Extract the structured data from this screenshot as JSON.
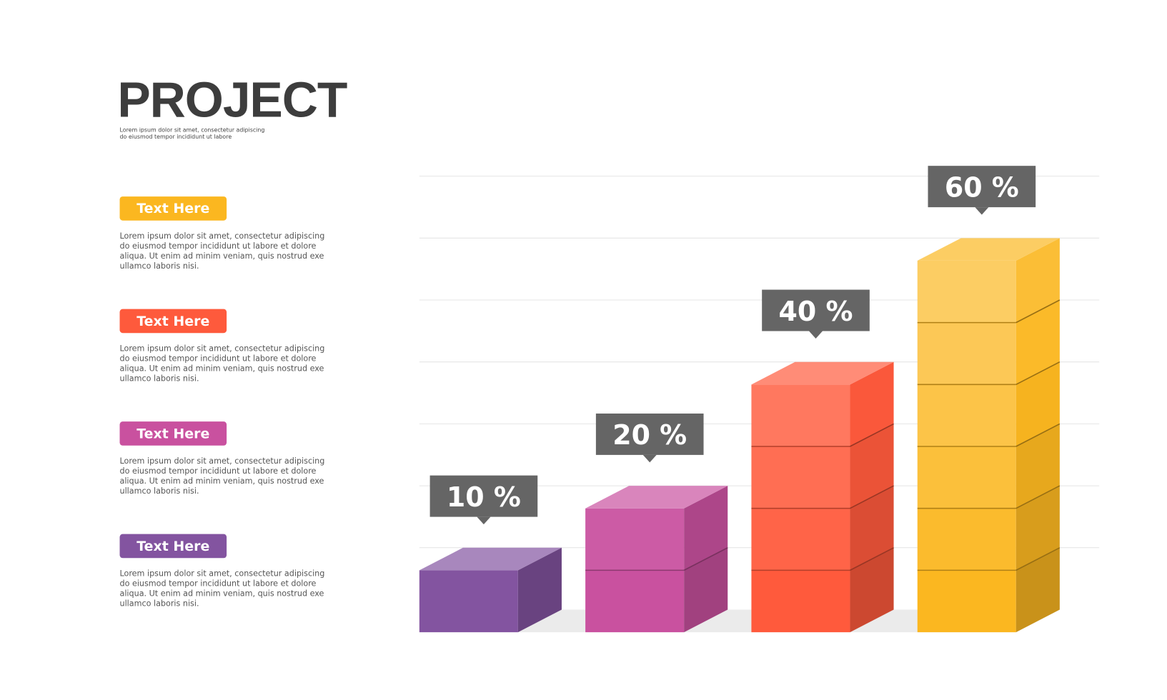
{
  "header": {
    "title": "PROJECT",
    "subtitle": [
      "Lorem ipsum dolor sit amet, consectetur adipiscing",
      "do eiusmod tempor incididunt ut labore"
    ]
  },
  "items": [
    {
      "label": "Text Here",
      "color": "#fbb720",
      "text": [
        "Lorem ipsum dolor sit amet, consectetur adipiscing",
        "do eiusmod tempor incididunt ut labore et dolore",
        "aliqua. Ut enim ad minim veniam, quis nostrud exe",
        "ullamco laboris nisi."
      ]
    },
    {
      "label": "Text Here",
      "color": "#fe5a3c",
      "text": [
        "Lorem ipsum dolor sit amet, consectetur adipiscing",
        "do eiusmod tempor incididunt ut labore et dolore",
        "aliqua. Ut enim ad minim veniam, quis nostrud exe",
        "ullamco laboris nisi."
      ]
    },
    {
      "label": "Text Here",
      "color": "#c9519f",
      "text": [
        "Lorem ipsum dolor sit amet, consectetur adipiscing",
        "do eiusmod tempor incididunt ut labore et dolore",
        "aliqua. Ut enim ad minim veniam, quis nostrud exe",
        "ullamco laboris nisi."
      ]
    },
    {
      "label": "Text Here",
      "color": "#8354a0",
      "text": [
        "Lorem ipsum dolor sit amet, consectetur adipiscing",
        "do eiusmod tempor incididunt ut labore et dolore",
        "aliqua. Ut enim ad minim veniam, quis nostrud exe",
        "ullamco laboris nisi."
      ]
    }
  ],
  "chart_data": {
    "type": "bar3d",
    "values": [
      10,
      20,
      40,
      60
    ],
    "value_labels": [
      "10 %",
      "20 %",
      "40 %",
      "60 %"
    ],
    "colors": [
      "#8354a0",
      "#c9519f",
      "#ff5a3c",
      "#fbb720"
    ],
    "ylim": [
      0,
      70
    ],
    "yticks": [
      10,
      20,
      30,
      40,
      50,
      60,
      70
    ],
    "grid": true
  }
}
